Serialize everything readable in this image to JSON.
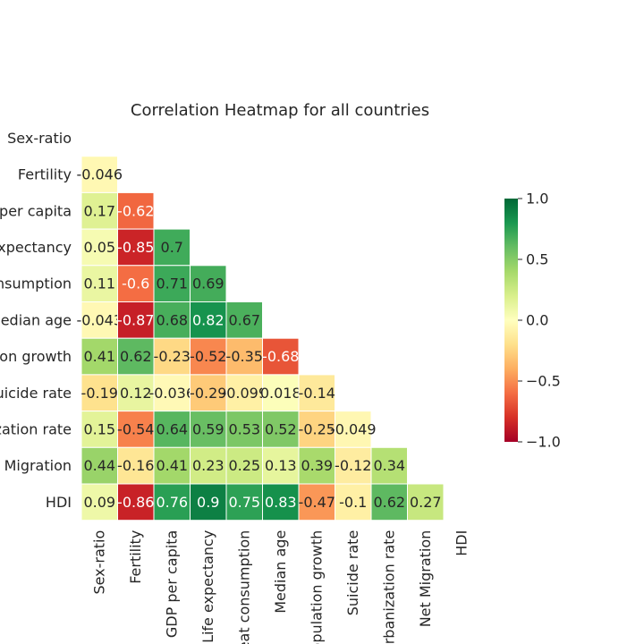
{
  "chart_data": {
    "type": "heatmap",
    "title": "Correlation Heatmap for all countries",
    "variables": [
      "Sex-ratio",
      "Fertility",
      "GDP per capita",
      "Life expectancy",
      "Meat consumption",
      "Median age",
      "Population growth",
      "Suicide rate",
      "Urbanization rate",
      "Net Migration",
      "HDI"
    ],
    "ytick_labels": [
      "Sex-ratio",
      "Fertility",
      "GDP per capita",
      "Life expectancy",
      "Meat consumption",
      "Median age",
      "Population growth",
      "Suicide rate",
      "Urbanization rate",
      "Net Migration",
      "HDI"
    ],
    "xtick_labels": [
      "Sex-ratio",
      "Fertility",
      "GDP per capita",
      "Life expectancy",
      "Meat consumption",
      "Median age",
      "Population growth",
      "Suicide rate",
      "Urbanization rate",
      "Net Migration",
      "HDI"
    ],
    "mask": "upper triangle including diagonal",
    "values": [
      [],
      [
        -0.046
      ],
      [
        0.17,
        -0.62
      ],
      [
        0.05,
        -0.85,
        0.7
      ],
      [
        0.11,
        -0.6,
        0.71,
        0.69
      ],
      [
        -0.043,
        -0.87,
        0.68,
        0.82,
        0.67
      ],
      [
        0.41,
        0.62,
        -0.23,
        -0.52,
        -0.35,
        -0.68
      ],
      [
        -0.19,
        0.12,
        -0.036,
        -0.29,
        -0.099,
        0.018,
        -0.14
      ],
      [
        0.15,
        -0.54,
        0.64,
        0.59,
        0.53,
        0.52,
        -0.25,
        -0.049
      ],
      [
        0.44,
        -0.16,
        0.41,
        0.23,
        0.25,
        0.13,
        0.39,
        -0.12,
        0.34
      ],
      [
        0.09,
        -0.86,
        0.76,
        0.9,
        0.75,
        0.83,
        -0.47,
        -0.1,
        0.62,
        0.27
      ]
    ],
    "cell_labels": [
      [],
      [
        "-0.046"
      ],
      [
        "0.17",
        "-0.62"
      ],
      [
        "0.05",
        "-0.85",
        "0.7"
      ],
      [
        "0.11",
        "-0.6",
        "0.71",
        "0.69"
      ],
      [
        "-0.043",
        "-0.87",
        "0.68",
        "0.82",
        "0.67"
      ],
      [
        "0.41",
        "0.62",
        "-0.23",
        "-0.52",
        "-0.35",
        "-0.68"
      ],
      [
        "-0.19",
        "0.12",
        "-0.036",
        "-0.29",
        "-0.099",
        "0.018",
        "-0.14"
      ],
      [
        "0.15",
        "-0.54",
        "0.64",
        "0.59",
        "0.53",
        "0.52",
        "-0.25",
        "-0.049"
      ],
      [
        "0.44",
        "-0.16",
        "0.41",
        "0.23",
        "0.25",
        "0.13",
        "0.39",
        "-0.12",
        "0.34"
      ],
      [
        "0.09",
        "-0.86",
        "0.76",
        "0.9",
        "0.75",
        "0.83",
        "-0.47",
        "-0.1",
        "0.62",
        "0.27"
      ]
    ],
    "colormap": "RdYlGn",
    "colorbar": {
      "range": [
        -1.0,
        1.0
      ],
      "ticks": [
        1.0,
        0.5,
        0.0,
        -0.5,
        -1.0
      ],
      "tick_labels": [
        "1.0",
        "0.5",
        "0.0",
        "−0.5",
        "−1.0"
      ],
      "placement": "right"
    },
    "grid": false
  }
}
